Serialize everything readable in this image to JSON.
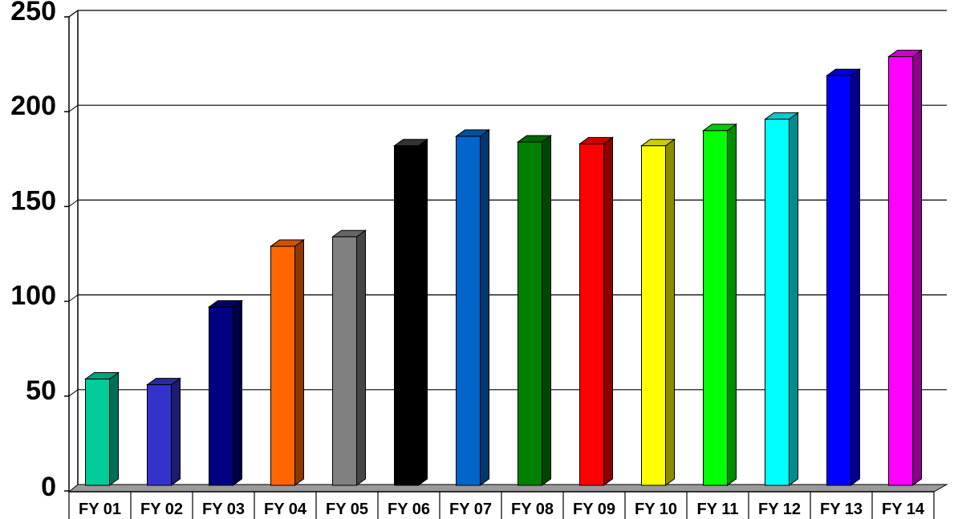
{
  "chart_data": {
    "type": "bar",
    "categories": [
      "FY 01",
      "FY 02",
      "FY 03",
      "FY 04",
      "FY 05",
      "FY 06",
      "FY 07",
      "FY 08",
      "FY 09",
      "FY 10",
      "FY 11",
      "FY 12",
      "FY 13",
      "FY 14"
    ],
    "values": [
      59,
      56,
      97,
      129,
      134,
      182,
      187,
      184,
      183,
      182,
      190,
      196,
      219,
      229
    ],
    "colors": [
      "#00CC99",
      "#3333CC",
      "#000080",
      "#FF6600",
      "#808080",
      "#000000",
      "#0066CC",
      "#008000",
      "#FF0000",
      "#FFFF00",
      "#00FF00",
      "#00FFFF",
      "#0000FF",
      "#FF00FF"
    ],
    "ylim": [
      0,
      250
    ],
    "yticks": [
      "0",
      "50",
      "100",
      "150",
      "200",
      "250"
    ],
    "title": "",
    "xlabel": "",
    "ylabel": "",
    "grid": true,
    "legend": "none",
    "style": "3d-bar"
  }
}
